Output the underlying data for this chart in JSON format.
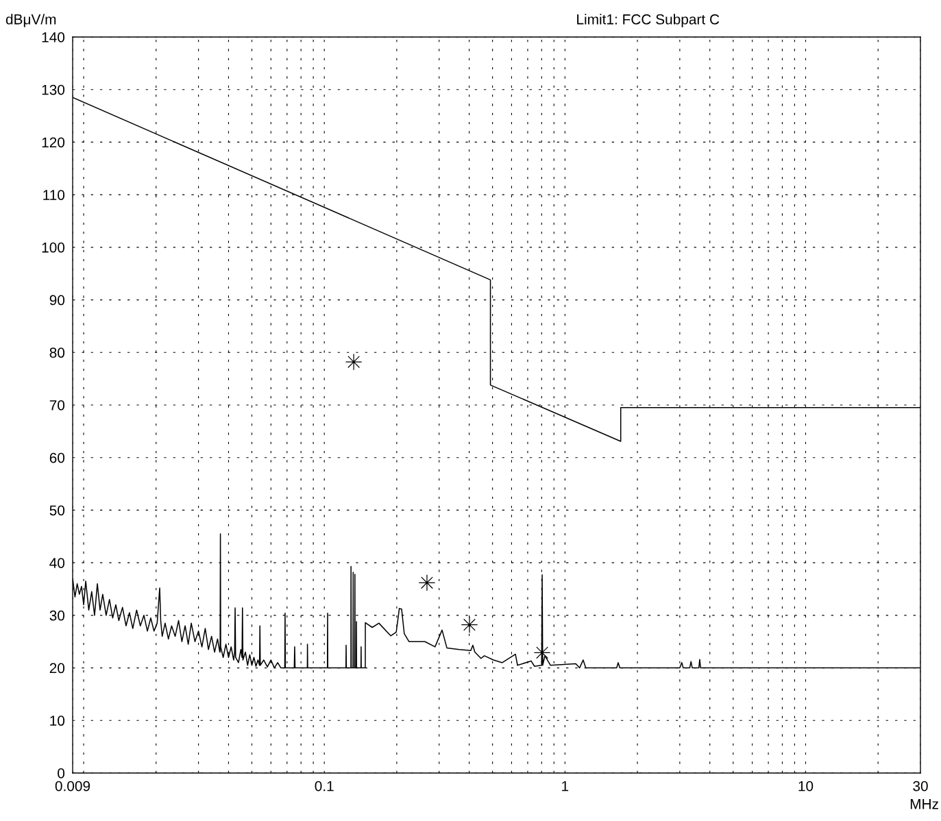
{
  "chart_data": {
    "type": "line",
    "title": "Limit1: FCC Subpart C",
    "xlabel": "MHz",
    "ylabel": "dBμV/m",
    "log": "x",
    "xlim": [
      0.009,
      30
    ],
    "ylim": [
      0,
      140
    ],
    "xticks": [
      0.009,
      {
        "value": 0.01,
        "label": null
      },
      {
        "value": 0.02,
        "label": null
      },
      {
        "value": 0.03,
        "label": null
      },
      {
        "value": 0.04,
        "label": null
      },
      {
        "value": 0.05,
        "label": null
      },
      {
        "value": 0.06,
        "label": null
      },
      {
        "value": 0.07,
        "label": null
      },
      {
        "value": 0.08,
        "label": null
      },
      {
        "value": 0.09,
        "label": null
      },
      0.1,
      {
        "value": 0.2,
        "label": null
      },
      {
        "value": 0.3,
        "label": null
      },
      {
        "value": 0.4,
        "label": null
      },
      {
        "value": 0.5,
        "label": null
      },
      {
        "value": 0.6,
        "label": null
      },
      {
        "value": 0.7,
        "label": null
      },
      {
        "value": 0.8,
        "label": null
      },
      {
        "value": 0.9,
        "label": null
      },
      1,
      {
        "value": 2,
        "label": null
      },
      {
        "value": 3,
        "label": null
      },
      {
        "value": 4,
        "label": null
      },
      {
        "value": 5,
        "label": null
      },
      {
        "value": 6,
        "label": null
      },
      {
        "value": 7,
        "label": null
      },
      {
        "value": 8,
        "label": null
      },
      {
        "value": 9,
        "label": null
      },
      10,
      {
        "value": 20,
        "label": null
      },
      30
    ],
    "yticks": [
      0,
      10,
      20,
      30,
      40,
      50,
      60,
      70,
      80,
      90,
      100,
      110,
      120,
      130,
      140
    ],
    "grid": true,
    "line_style": "solid",
    "series": [
      {
        "color": "#000000",
        "x": [
          0.009,
          0.49,
          0.49,
          1.705,
          1.705,
          30
        ],
        "values": [
          128.5,
          93.8,
          73.8,
          63.1,
          69.5,
          69.5
        ]
      },
      {
        "color": "#000000",
        "x": [
          0.009,
          0.0092,
          0.0094,
          0.0096,
          0.0098,
          0.01,
          0.0102,
          0.0105,
          0.0108,
          0.0111,
          0.0114,
          0.0117,
          0.012,
          0.0124,
          0.0128,
          0.0132,
          0.0136,
          0.014,
          0.0145,
          0.015,
          0.0155,
          0.016,
          0.0166,
          0.0172,
          0.0178,
          0.0184,
          0.019,
          0.0196,
          0.0202,
          0.0205,
          0.0207,
          0.0209,
          0.0212,
          0.0218,
          0.0225,
          0.0232,
          0.024,
          0.0248,
          0.0256,
          0.0264,
          0.0272,
          0.028,
          0.029,
          0.03,
          0.031,
          0.032,
          0.033,
          0.034,
          0.035,
          0.036,
          0.0368,
          0.0369,
          0.037,
          0.0371,
          0.038,
          0.039,
          0.04,
          0.041,
          0.042,
          0.0424,
          0.0426,
          0.0428,
          0.044,
          0.045,
          0.0455,
          0.0457,
          0.0459,
          0.047,
          0.048,
          0.049,
          0.05,
          0.051,
          0.052,
          0.053,
          0.0538,
          0.054,
          0.0542,
          0.056,
          0.058,
          0.06,
          0.062,
          0.064,
          0.066,
          0.0685,
          0.0687,
          0.0689,
          0.075,
          0.0753,
          0.0756,
          0.085,
          0.0851,
          0.0853,
          0.103,
          0.1032,
          0.1034,
          0.123,
          0.1232,
          0.1235,
          0.129,
          0.1291,
          0.1294,
          0.1316,
          0.1318,
          0.132,
          0.1338,
          0.134,
          0.1342,
          0.1358,
          0.136,
          0.1362,
          0.142,
          0.1422,
          0.1424,
          0.148,
          0.1481,
          0.1582,
          0.1686,
          0.1888,
          0.199,
          0.205,
          0.2095,
          0.2149,
          0.2248,
          0.2619,
          0.2885,
          0.3085,
          0.3231,
          0.3632,
          0.4062,
          0.4141,
          0.4222,
          0.4477,
          0.4624,
          0.5042,
          0.5487,
          0.6226,
          0.635,
          0.7237,
          0.7475,
          0.8,
          0.804,
          0.808,
          0.8254,
          0.87,
          1.109,
          1.15,
          1.19,
          1.22,
          1.64,
          1.664,
          1.69,
          3.0,
          3.06,
          3.1,
          3.3,
          3.34,
          3.38,
          3.6,
          3.63,
          3.66,
          30
        ],
        "values": [
          37,
          33.5,
          36,
          34,
          35.5,
          32,
          36.5,
          31,
          34.5,
          30,
          36,
          31,
          34,
          30,
          33,
          29.5,
          32,
          29,
          31.5,
          28,
          30.5,
          27.5,
          31,
          28,
          30,
          27,
          29.5,
          27,
          28.5,
          32.5,
          35.2,
          29,
          26,
          28.5,
          25.5,
          28,
          26,
          29,
          25,
          28,
          24.5,
          28.5,
          25,
          27,
          24,
          27.5,
          23.5,
          26,
          23,
          25.5,
          23,
          23,
          45.5,
          24,
          22,
          24.5,
          22,
          24,
          21.5,
          23,
          31.4,
          22,
          21,
          23.5,
          22,
          31.4,
          21.5,
          23,
          20.5,
          22.5,
          20.5,
          22,
          20.3,
          21.5,
          20.5,
          28,
          20.5,
          21.5,
          20.2,
          21.5,
          20,
          21,
          20,
          20,
          30.4,
          20,
          20,
          24,
          20,
          20,
          24.5,
          20,
          20,
          30.4,
          20,
          20,
          24.3,
          20,
          20,
          39.3,
          20,
          20,
          38.2,
          20,
          20,
          37.8,
          20,
          20,
          28.8,
          20,
          20,
          24,
          20,
          20,
          28.6,
          27.7,
          28.5,
          26.1,
          26.8,
          31.3,
          31.2,
          26.5,
          25,
          25,
          24,
          27.2,
          23.8,
          23.5,
          23.3,
          24.3,
          23,
          21.8,
          22.3,
          21.5,
          21,
          22.6,
          20.5,
          21.3,
          20.3,
          20.5,
          37.7,
          20.5,
          22.3,
          20.5,
          20.8,
          20,
          21.5,
          20,
          20,
          21,
          20,
          20,
          21,
          20,
          20,
          21.2,
          20,
          20,
          21.6,
          20,
          20
        ]
      },
      {
        "type": "scatter",
        "color": "#000000",
        "marker": "star",
        "x": [
          0.1325,
          0.267,
          0.401,
          0.804
        ],
        "values": [
          78.2,
          36.2,
          28.2,
          22.9
        ]
      }
    ]
  }
}
